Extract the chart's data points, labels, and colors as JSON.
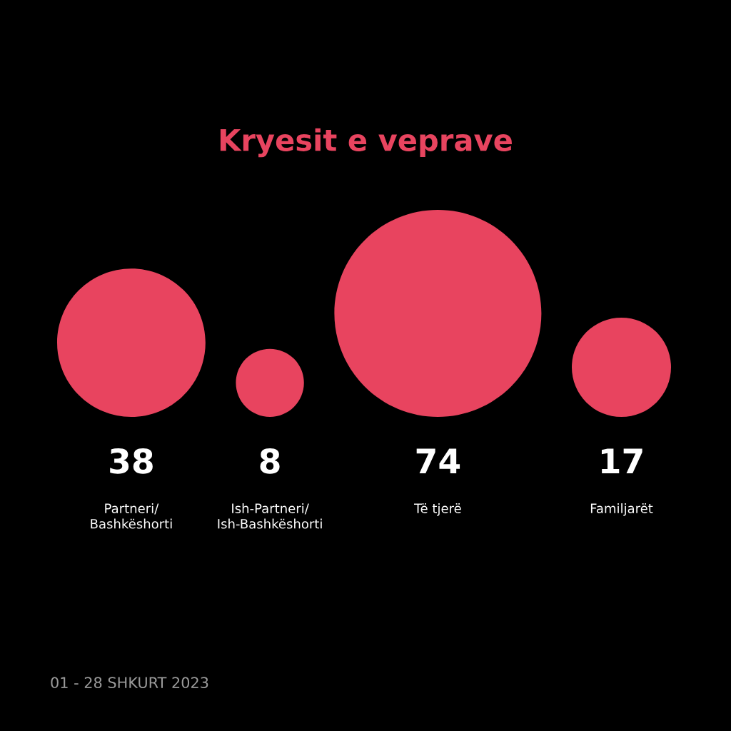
{
  "chart_data": {
    "type": "other",
    "title": "Kryesit e veprave",
    "categories": [
      "Partneri/\nBashkëshorti",
      "Ish-Partneri/\nIsh-Bashkëshorti",
      "Të tjerë",
      "Familjarët"
    ],
    "values": [
      38,
      8,
      74,
      17
    ],
    "color": "#e8445f",
    "data_labels": true,
    "annotations": [
      "01 - 28 SHKURT 2023"
    ]
  }
}
